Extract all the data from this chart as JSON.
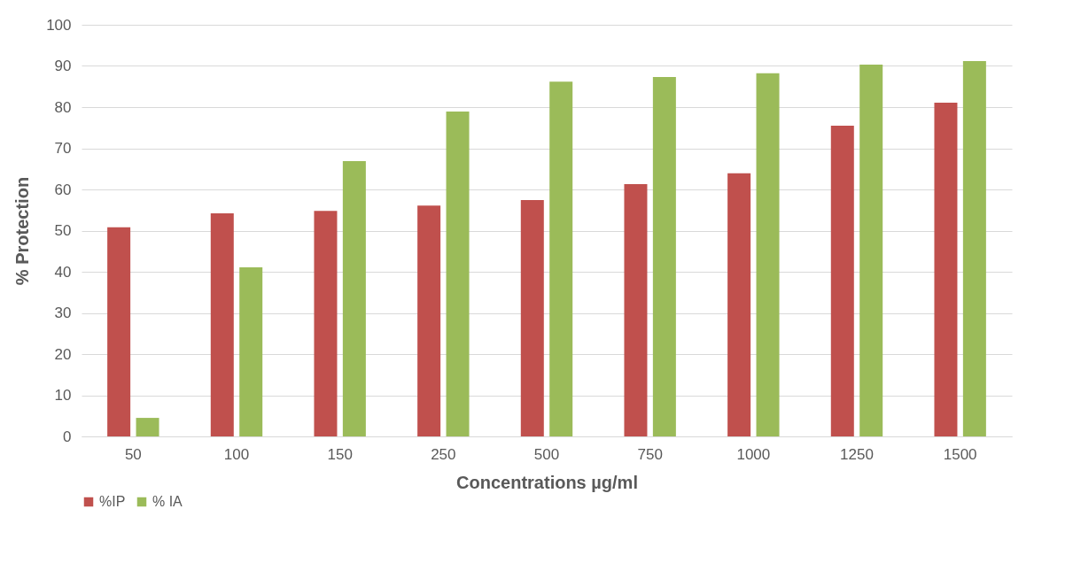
{
  "chart_data": {
    "type": "bar",
    "xlabel": "Concentrations µg/ml",
    "ylabel": "% Protection",
    "categories": [
      "50",
      "100",
      "150",
      "250",
      "500",
      "750",
      "1000",
      "1250",
      "1500"
    ],
    "series": [
      {
        "name": "%IP",
        "color": "#c0504d",
        "values": [
          50.8,
          54.2,
          54.8,
          56.1,
          57.4,
          61.3,
          63.9,
          75.5,
          81.1
        ]
      },
      {
        "name": "% IA",
        "color": "#9bbb59",
        "values": [
          4.5,
          41.1,
          66.9,
          78.9,
          86.2,
          87.3,
          88.2,
          90.3,
          91.2
        ]
      }
    ],
    "ylim": [
      0,
      100
    ],
    "yticks": [
      0,
      10,
      20,
      30,
      40,
      50,
      60,
      70,
      80,
      90,
      100
    ],
    "grid": "y",
    "legend": "bottom left"
  }
}
